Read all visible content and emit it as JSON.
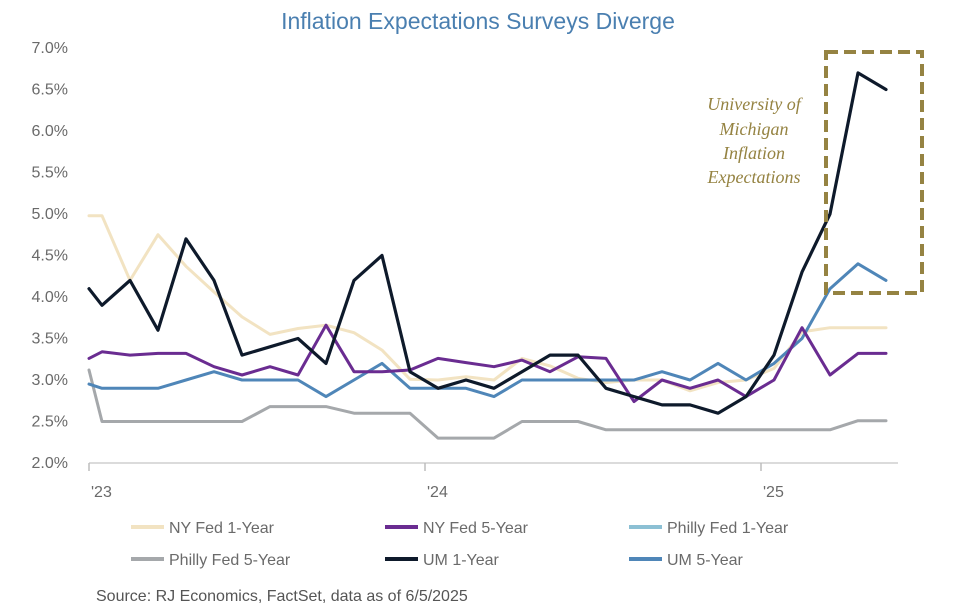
{
  "chart_data": {
    "type": "line",
    "title": "Inflation Expectations Surveys Diverge",
    "ylim": [
      2.0,
      7.0
    ],
    "y_ticks": [
      2.0,
      2.5,
      3.0,
      3.5,
      4.0,
      4.5,
      5.0,
      5.5,
      6.0,
      6.5,
      7.0
    ],
    "y_tick_labels": [
      "2.0%",
      "2.5%",
      "3.0%",
      "3.5%",
      "4.0%",
      "4.5%",
      "5.0%",
      "5.5%",
      "6.0%",
      "6.5%",
      "7.0%"
    ],
    "x": [
      "2023-01",
      "2023-02",
      "2023-03",
      "2023-04",
      "2023-05",
      "2023-06",
      "2023-07",
      "2023-08",
      "2023-09",
      "2023-10",
      "2023-11",
      "2023-12",
      "2024-01",
      "2024-02",
      "2024-03",
      "2024-04",
      "2024-05",
      "2024-06",
      "2024-07",
      "2024-08",
      "2024-09",
      "2024-10",
      "2024-11",
      "2024-12",
      "2025-01",
      "2025-02",
      "2025-03",
      "2025-04",
      "2025-05"
    ],
    "x_ticks": [
      "2023-01",
      "2024-01",
      "2025-01"
    ],
    "x_tick_labels": [
      "'23",
      "'24",
      "'25"
    ],
    "grid": false,
    "legend_position": "bottom",
    "series": [
      {
        "name": "NY Fed 1-Year",
        "color": "#f2e3c2",
        "values": [
          4.98,
          4.2,
          4.75,
          4.37,
          4.06,
          3.76,
          3.55,
          3.62,
          3.66,
          3.57,
          3.36,
          3.01,
          3.0,
          3.04,
          3.0,
          3.26,
          3.17,
          3.02,
          2.97,
          3.0,
          3.0,
          2.87,
          2.97,
          3.0,
          3.14,
          3.58,
          3.63,
          3.63,
          3.63
        ]
      },
      {
        "name": "NY Fed 5-Year",
        "color": "#6a2c91",
        "values": [
          3.34,
          3.3,
          3.32,
          3.32,
          3.16,
          3.06,
          3.16,
          3.06,
          3.66,
          3.1,
          3.1,
          3.12,
          3.26,
          3.21,
          3.16,
          3.24,
          3.1,
          3.28,
          3.26,
          2.74,
          3.0,
          2.9,
          3.0,
          2.8,
          3.0,
          3.63,
          3.06,
          3.32,
          3.32
        ]
      },
      {
        "name": "Philly Fed 1-Year",
        "color": "#8cc0d4",
        "values": [
          null,
          null,
          null,
          null,
          null,
          null,
          null,
          null,
          null,
          null,
          null,
          null,
          null,
          null,
          null,
          null,
          null,
          null,
          null,
          null,
          null,
          null,
          null,
          null,
          null,
          null,
          null,
          null,
          null
        ]
      },
      {
        "name": "Philly Fed 5-Year",
        "color": "#a5a8ab",
        "values": [
          2.5,
          2.5,
          2.5,
          2.5,
          2.5,
          2.5,
          2.68,
          2.68,
          2.68,
          2.6,
          2.6,
          2.6,
          2.3,
          2.3,
          2.3,
          2.5,
          2.5,
          2.5,
          2.4,
          2.4,
          2.4,
          2.4,
          2.4,
          2.4,
          2.4,
          2.4,
          2.4,
          2.51,
          2.51
        ]
      },
      {
        "name": "UM 1-Year",
        "color": "#0e1a2b",
        "values": [
          3.9,
          4.2,
          3.6,
          4.7,
          4.2,
          3.3,
          3.4,
          3.5,
          3.2,
          4.2,
          4.5,
          3.1,
          2.9,
          3.0,
          2.9,
          3.1,
          3.3,
          3.3,
          2.9,
          2.8,
          2.7,
          2.7,
          2.6,
          2.8,
          3.3,
          4.3,
          5.0,
          6.7,
          6.5
        ]
      },
      {
        "name": "UM 5-Year",
        "color": "#4f86b8",
        "values": [
          2.9,
          2.9,
          2.9,
          3.0,
          3.1,
          3.0,
          3.0,
          3.0,
          2.8,
          3.0,
          3.2,
          2.9,
          2.9,
          2.9,
          2.8,
          3.0,
          3.0,
          3.0,
          3.0,
          3.0,
          3.1,
          3.0,
          3.2,
          3.0,
          3.2,
          3.5,
          4.1,
          4.4,
          4.2
        ]
      }
    ],
    "annotation": {
      "lines": [
        "University of",
        "Michigan",
        "Inflation",
        "Expectations"
      ],
      "color": "#958342"
    },
    "source": "Source: RJ Economics, FactSet, data as of 6/5/2025"
  }
}
